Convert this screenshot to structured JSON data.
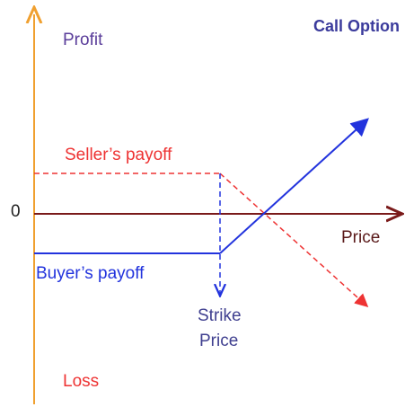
{
  "title": "Call Option",
  "axes": {
    "profit": "Profit",
    "loss": "Loss",
    "origin": "0",
    "price": "Price"
  },
  "lines": {
    "seller": "Seller’s payoff",
    "buyer": "Buyer’s payoff"
  },
  "strike": {
    "lines": [
      "Strike",
      "Price"
    ]
  }
}
